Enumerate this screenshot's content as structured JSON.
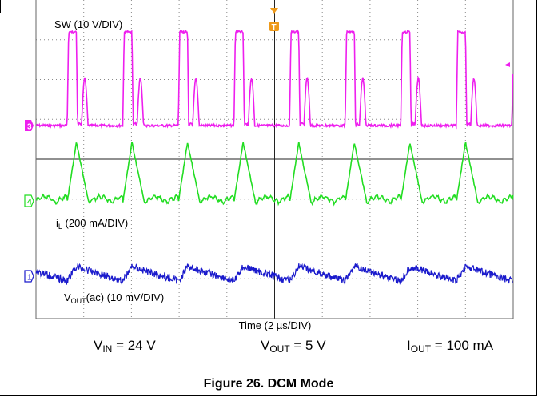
{
  "colors": {
    "ch3": "#ee1fee",
    "ch4": "#22dd22",
    "ch1": "#1a1acc",
    "trigger": "#ee9a1a",
    "grid": "#888888"
  },
  "labels": {
    "sw": "SW (10 V/DIV)",
    "il_main": "i",
    "il_sub": "L",
    "il_rest": " (200 mA/DIV)",
    "vout_main": "V",
    "vout_sub": "OUT",
    "vout_rest": "(ac) (10 mV/DIV)",
    "time": "Time (2 µs/DIV)",
    "ch3_marker": "3",
    "ch4_marker": "4",
    "ch1_marker": "1",
    "trigger_marker": "T"
  },
  "conditions": {
    "vin_main": "V",
    "vin_sub": "IN",
    "vin_rest": " = 24 V",
    "vout_main": "V",
    "vout_sub": "OUT",
    "vout_rest": " = 5 V",
    "iout_main": "I",
    "iout_sub": "OUT",
    "iout_rest": " = 100 mA"
  },
  "caption": "Figure 26. DCM Mode",
  "chart_data": {
    "type": "line",
    "x_unit": "µs",
    "x_divisions": 10,
    "x_scale_per_div": 2,
    "y_divisions": 8,
    "grid": true,
    "switching_period_us": 2.33,
    "series": [
      {
        "name": "SW (10 V/DIV)",
        "channel": 3,
        "scale": "10 V/DIV",
        "waveform": "dcm switch node: pulses with ringing"
      },
      {
        "name": "iL (200 mA/DIV)",
        "channel": 4,
        "scale": "200 mA/DIV",
        "waveform": "triangular inductor current with ringing at zero"
      },
      {
        "name": "VOUT(ac) (10 mV/DIV)",
        "channel": 1,
        "scale": "10 mV/DIV",
        "waveform": "ac-coupled output ripple with noise"
      }
    ]
  }
}
